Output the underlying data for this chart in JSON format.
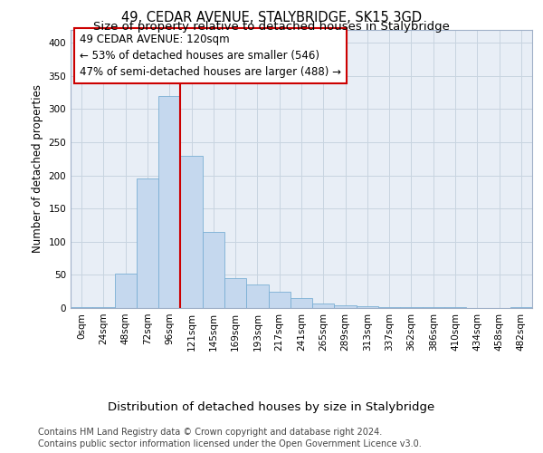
{
  "title": "49, CEDAR AVENUE, STALYBRIDGE, SK15 3GD",
  "subtitle": "Size of property relative to detached houses in Stalybridge",
  "xlabel": "Distribution of detached houses by size in Stalybridge",
  "ylabel": "Number of detached properties",
  "categories": [
    "0sqm",
    "24sqm",
    "48sqm",
    "72sqm",
    "96sqm",
    "121sqm",
    "145sqm",
    "169sqm",
    "193sqm",
    "217sqm",
    "241sqm",
    "265sqm",
    "289sqm",
    "313sqm",
    "337sqm",
    "362sqm",
    "386sqm",
    "410sqm",
    "434sqm",
    "458sqm",
    "482sqm"
  ],
  "values": [
    2,
    2,
    52,
    195,
    320,
    230,
    115,
    45,
    35,
    25,
    15,
    7,
    4,
    3,
    2,
    1,
    1,
    1,
    0,
    0,
    1
  ],
  "bar_color": "#c5d8ee",
  "bar_edge_color": "#7aafd4",
  "property_line_idx": 5,
  "property_line_color": "#cc0000",
  "annotation_text": "49 CEDAR AVENUE: 120sqm\n← 53% of detached houses are smaller (546)\n47% of semi-detached houses are larger (488) →",
  "annotation_box_color": "#ffffff",
  "annotation_box_edge": "#cc0000",
  "ylim": [
    0,
    420
  ],
  "yticks": [
    0,
    50,
    100,
    150,
    200,
    250,
    300,
    350,
    400
  ],
  "footer1": "Contains HM Land Registry data © Crown copyright and database right 2024.",
  "footer2": "Contains public sector information licensed under the Open Government Licence v3.0.",
  "bg_color": "#ffffff",
  "grid_color": "#c8d4e0",
  "title_fontsize": 10.5,
  "subtitle_fontsize": 9.5,
  "xlabel_fontsize": 9.5,
  "ylabel_fontsize": 8.5,
  "tick_fontsize": 7.5,
  "annotation_fontsize": 8.5,
  "footer_fontsize": 7,
  "bar_width": 1.0
}
